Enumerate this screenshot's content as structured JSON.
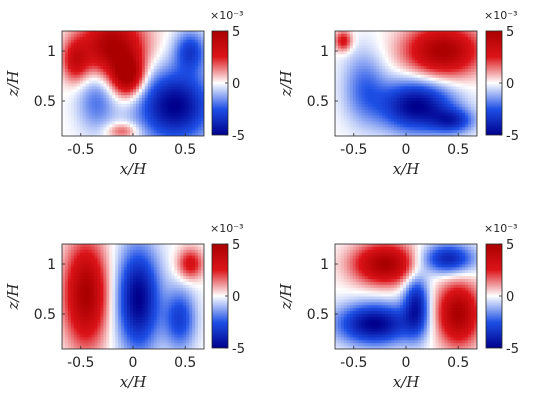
{
  "chart_data": [
    {
      "type": "heatmap",
      "xlabel": "x/H",
      "ylabel": "z/H",
      "xticks": [
        "-0.5",
        "0",
        "0.5"
      ],
      "yticks": [
        "0.5",
        "1"
      ],
      "colorbar": {
        "ticks": [
          "5",
          "0",
          "-5"
        ],
        "exponent": "×10⁻³",
        "range": [
          -0.005,
          0.005
        ]
      },
      "blobs": [
        {
          "x": -0.2,
          "z": 1.05,
          "rx": 0.3,
          "rz": 0.3,
          "v": 5
        },
        {
          "x": -0.05,
          "z": 0.75,
          "rx": 0.15,
          "rz": 0.2,
          "v": 5
        },
        {
          "x": -0.55,
          "z": 0.9,
          "rx": 0.12,
          "rz": 0.2,
          "v": 3
        },
        {
          "x": 0.4,
          "z": 0.45,
          "rx": 0.35,
          "rz": 0.35,
          "v": -5
        },
        {
          "x": 0.55,
          "z": 1.0,
          "rx": 0.15,
          "rz": 0.2,
          "v": -3
        },
        {
          "x": -0.35,
          "z": 0.5,
          "rx": 0.18,
          "rz": 0.3,
          "v": -2
        },
        {
          "x": -0.1,
          "z": 0.2,
          "rx": 0.15,
          "rz": 0.08,
          "v": 2
        }
      ]
    },
    {
      "type": "heatmap",
      "xlabel": "x/H",
      "ylabel": "z/H",
      "xticks": [
        "-0.5",
        "0",
        "0.5"
      ],
      "yticks": [
        "0.5",
        "1"
      ],
      "colorbar": {
        "ticks": [
          "5",
          "0",
          "-5"
        ],
        "exponent": "×10⁻³",
        "range": [
          -0.005,
          0.005
        ]
      },
      "blobs": [
        {
          "x": 0.35,
          "z": 1.0,
          "rx": 0.35,
          "rz": 0.25,
          "v": 5
        },
        {
          "x": -0.6,
          "z": 1.1,
          "rx": 0.08,
          "rz": 0.1,
          "v": 3
        },
        {
          "x": 0.1,
          "z": 0.45,
          "rx": 0.35,
          "rz": 0.25,
          "v": -5
        },
        {
          "x": -0.4,
          "z": 0.65,
          "rx": 0.2,
          "rz": 0.35,
          "v": -2
        },
        {
          "x": 0.45,
          "z": 0.3,
          "rx": 0.2,
          "rz": 0.12,
          "v": -3
        }
      ]
    },
    {
      "type": "heatmap",
      "xlabel": "x/H",
      "ylabel": "z/H",
      "xticks": [
        "-0.5",
        "0",
        "0.5"
      ],
      "yticks": [
        "0.5",
        "1"
      ],
      "colorbar": {
        "ticks": [
          "5",
          "0",
          "-5"
        ],
        "exponent": "×10⁻³",
        "range": [
          -0.005,
          0.005
        ]
      },
      "blobs": [
        {
          "x": -0.45,
          "z": 0.7,
          "rx": 0.2,
          "rz": 0.5,
          "v": 5
        },
        {
          "x": 0.05,
          "z": 0.65,
          "rx": 0.2,
          "rz": 0.5,
          "v": -5
        },
        {
          "x": 0.55,
          "z": 1.0,
          "rx": 0.12,
          "rz": 0.15,
          "v": 3
        },
        {
          "x": 0.45,
          "z": 0.45,
          "rx": 0.15,
          "rz": 0.3,
          "v": -3
        }
      ]
    },
    {
      "type": "heatmap",
      "xlabel": "x/H",
      "ylabel": "z/H",
      "xticks": [
        "-0.5",
        "0",
        "0.5"
      ],
      "yticks": [
        "0.5",
        "1"
      ],
      "colorbar": {
        "ticks": [
          "5",
          "0",
          "-5"
        ],
        "exponent": "×10⁻³",
        "range": [
          -0.005,
          0.005
        ]
      },
      "blobs": [
        {
          "x": -0.2,
          "z": 1.0,
          "rx": 0.3,
          "rz": 0.2,
          "v": 5
        },
        {
          "x": 0.5,
          "z": 0.5,
          "rx": 0.2,
          "rz": 0.3,
          "v": 5
        },
        {
          "x": -0.3,
          "z": 0.4,
          "rx": 0.35,
          "rz": 0.2,
          "v": -5
        },
        {
          "x": 0.4,
          "z": 1.05,
          "rx": 0.25,
          "rz": 0.15,
          "v": -4
        },
        {
          "x": 0.1,
          "z": 0.6,
          "rx": 0.12,
          "rz": 0.3,
          "v": -4
        }
      ]
    }
  ]
}
